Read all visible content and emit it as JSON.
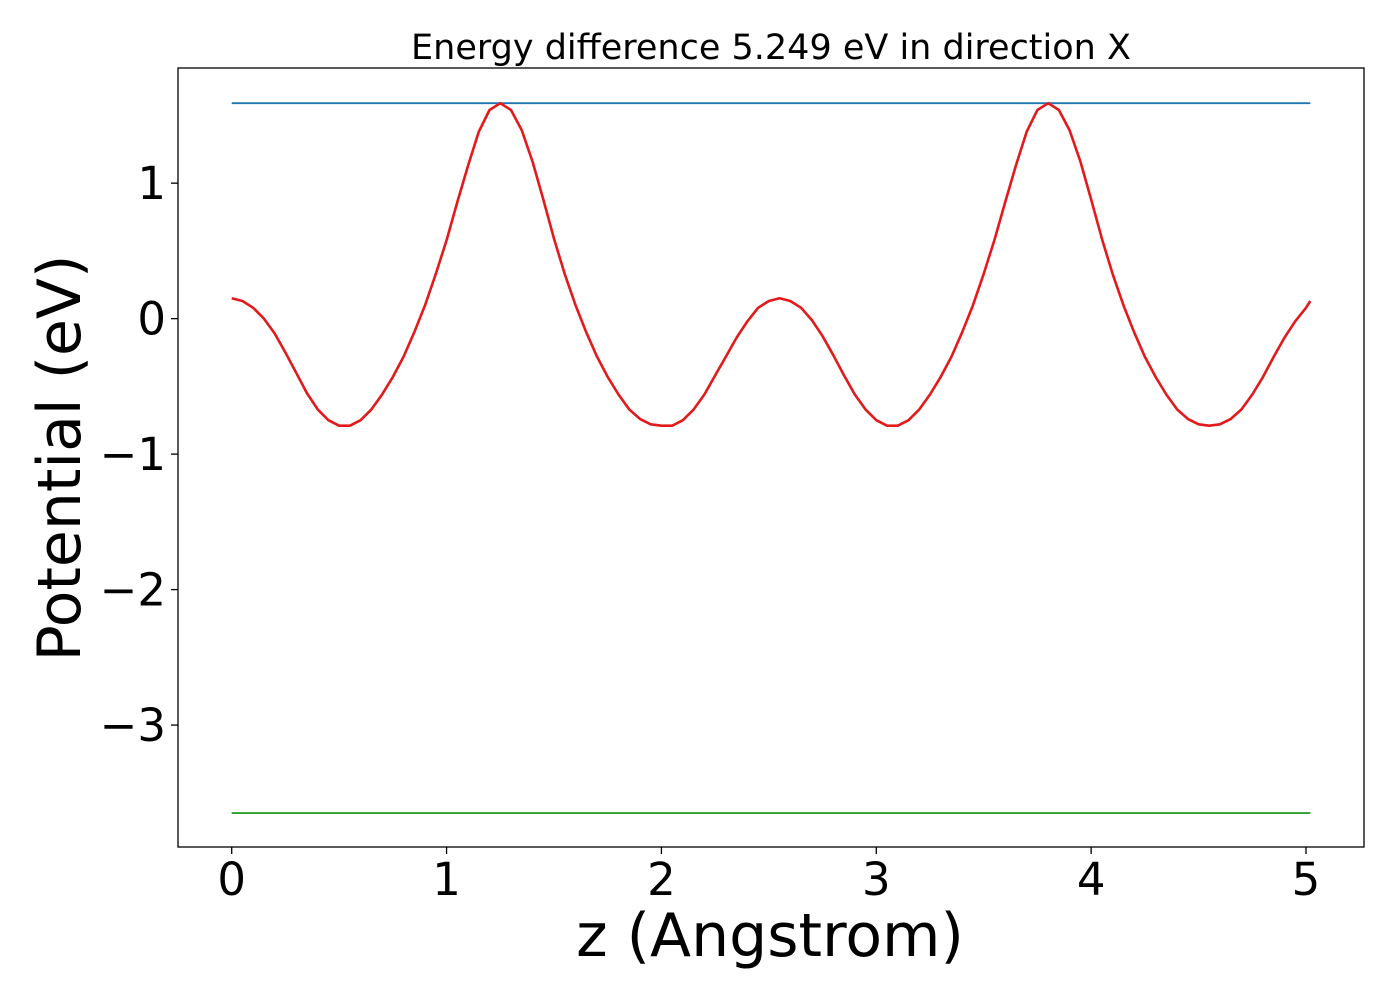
{
  "chart_data": {
    "type": "line",
    "title": "Energy difference 5.249 eV in direction X",
    "xlabel": "z (Angstrom)",
    "ylabel": "Potential (eV)",
    "xlim": [
      -0.25,
      5.27
    ],
    "ylim": [
      -3.9,
      1.85
    ],
    "xticks": [
      0,
      1,
      2,
      3,
      4,
      5
    ],
    "xtick_labels": [
      "0",
      "1",
      "2",
      "3",
      "4",
      "5"
    ],
    "yticks": [
      1,
      0,
      -1,
      -2,
      -3
    ],
    "ytick_labels": [
      "1",
      "0",
      "−1",
      "−2",
      "−3"
    ],
    "grid": false,
    "legend": "none",
    "series": [
      {
        "color": "#1f77b4",
        "kind": "hline",
        "x": [
          0,
          5.02
        ],
        "y": [
          1.59,
          1.59
        ]
      },
      {
        "color": "#2ca02c",
        "kind": "hline",
        "x": [
          0,
          5.02
        ],
        "y": [
          -3.65,
          -3.65
        ]
      },
      {
        "color": "#e31a1c",
        "kind": "curve",
        "x": [
          0,
          0.05,
          0.1,
          0.15,
          0.2,
          0.25,
          0.3,
          0.35,
          0.4,
          0.45,
          0.5,
          0.55,
          0.6,
          0.65,
          0.7,
          0.75,
          0.8,
          0.85,
          0.9,
          0.95,
          1.0,
          1.05,
          1.1,
          1.15,
          1.2,
          1.25,
          1.3,
          1.35,
          1.4,
          1.45,
          1.5,
          1.55,
          1.6,
          1.65,
          1.7,
          1.75,
          1.8,
          1.85,
          1.9,
          1.95,
          2.0,
          2.05,
          2.1,
          2.15,
          2.2,
          2.25,
          2.3,
          2.35,
          2.4,
          2.45,
          2.5,
          2.55,
          2.6,
          2.65,
          2.7,
          2.75,
          2.8,
          2.85,
          2.9,
          2.95,
          3.0,
          3.05,
          3.1,
          3.15,
          3.2,
          3.25,
          3.3,
          3.35,
          3.4,
          3.45,
          3.5,
          3.55,
          3.6,
          3.65,
          3.7,
          3.75,
          3.8,
          3.85,
          3.9,
          3.95,
          4.0,
          4.05,
          4.1,
          4.15,
          4.2,
          4.25,
          4.3,
          4.35,
          4.4,
          4.45,
          4.5,
          4.55,
          4.6,
          4.65,
          4.7,
          4.75,
          4.8,
          4.85,
          4.9,
          4.95,
          5.0,
          5.02
        ],
        "y": [
          0.15,
          0.13,
          0.08,
          0.0,
          -0.11,
          -0.25,
          -0.4,
          -0.55,
          -0.67,
          -0.75,
          -0.79,
          -0.79,
          -0.75,
          -0.67,
          -0.56,
          -0.43,
          -0.28,
          -0.1,
          0.1,
          0.33,
          0.58,
          0.86,
          1.13,
          1.38,
          1.54,
          1.59,
          1.54,
          1.39,
          1.16,
          0.88,
          0.59,
          0.33,
          0.1,
          -0.1,
          -0.28,
          -0.43,
          -0.56,
          -0.67,
          -0.74,
          -0.78,
          -0.79,
          -0.79,
          -0.75,
          -0.67,
          -0.56,
          -0.42,
          -0.28,
          -0.14,
          -0.02,
          0.08,
          0.13,
          0.15,
          0.13,
          0.08,
          -0.01,
          -0.13,
          -0.27,
          -0.42,
          -0.56,
          -0.67,
          -0.75,
          -0.79,
          -0.79,
          -0.75,
          -0.67,
          -0.56,
          -0.43,
          -0.28,
          -0.1,
          0.1,
          0.33,
          0.58,
          0.86,
          1.13,
          1.38,
          1.54,
          1.59,
          1.54,
          1.39,
          1.16,
          0.88,
          0.59,
          0.33,
          0.1,
          -0.1,
          -0.28,
          -0.43,
          -0.56,
          -0.67,
          -0.74,
          -0.78,
          -0.79,
          -0.78,
          -0.74,
          -0.67,
          -0.56,
          -0.43,
          -0.28,
          -0.14,
          -0.02,
          0.08,
          0.13
        ]
      }
    ]
  }
}
